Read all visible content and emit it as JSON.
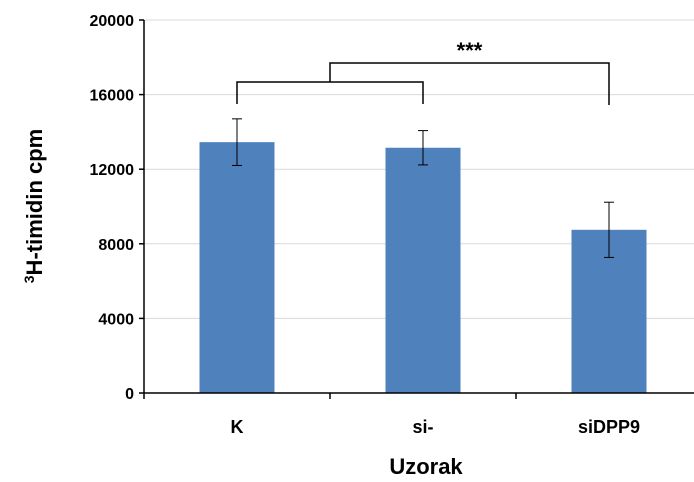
{
  "chart_data": {
    "type": "bar",
    "categories": [
      "K",
      "si-",
      "siDPP9"
    ],
    "values": [
      13450,
      13150,
      8750
    ],
    "errors": [
      1250,
      920,
      1480
    ],
    "ylim": [
      0,
      20000
    ],
    "yticks": [
      0,
      4000,
      8000,
      12000,
      16000,
      20000
    ],
    "ylabel_super": "3",
    "ylabel_main": "H-timidin cpm",
    "xlabel": "Uzorak",
    "grid": true,
    "bar_color": "#4f81bd",
    "significance": {
      "label": "***",
      "group_a": [
        0,
        1
      ],
      "group_b": [
        2
      ]
    }
  }
}
